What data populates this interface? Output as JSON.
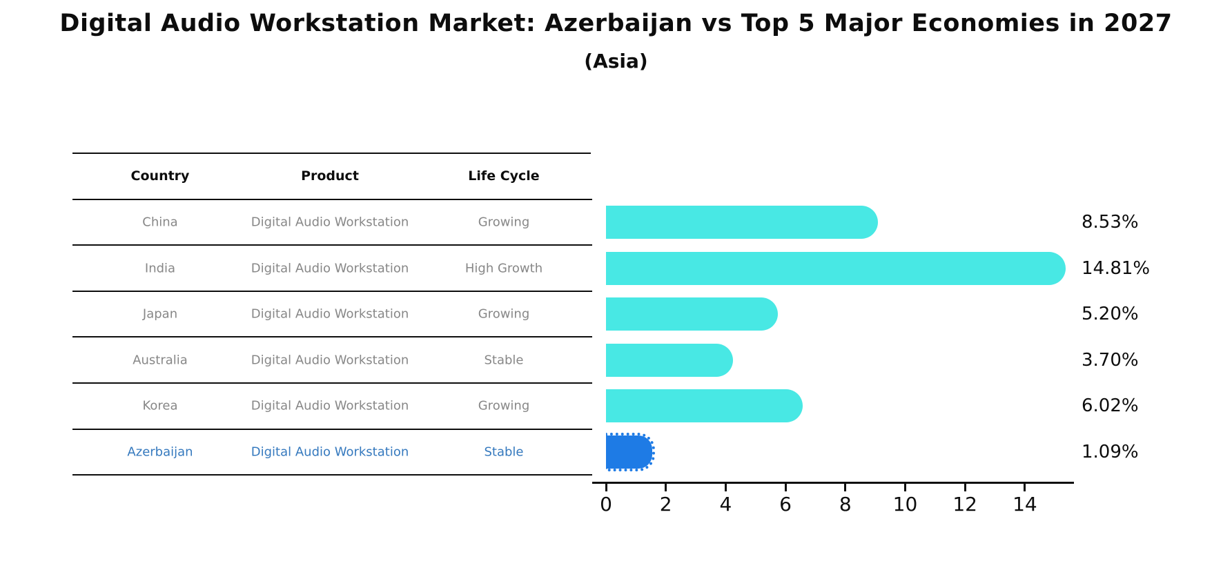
{
  "title": "Digital Audio Workstation Market: Azerbaijan vs Top 5 Major Economies in 2027",
  "subtitle": "(Asia)",
  "table": {
    "headers": [
      "Country",
      "Product",
      "Life Cycle"
    ],
    "rows": [
      {
        "country": "China",
        "product": "Digital Audio Workstation",
        "life_cycle": "Growing",
        "highlighted": false
      },
      {
        "country": "India",
        "product": "Digital Audio Workstation",
        "life_cycle": "High Growth",
        "highlighted": false
      },
      {
        "country": "Japan",
        "product": "Digital Audio Workstation",
        "life_cycle": "Growing",
        "highlighted": false
      },
      {
        "country": "Australia",
        "product": "Digital Audio Workstation",
        "life_cycle": "Stable",
        "highlighted": false
      },
      {
        "country": "Korea",
        "product": "Digital Audio Workstation",
        "life_cycle": "Growing",
        "highlighted": false
      },
      {
        "country": "Azerbaijan",
        "product": "Digital Audio Workstation",
        "life_cycle": "Stable",
        "highlighted": true
      }
    ]
  },
  "chart_data": {
    "type": "bar",
    "orientation": "horizontal",
    "title": "Digital Audio Workstation Market: Azerbaijan vs Top 5 Major Economies in 2027 (Asia)",
    "categories": [
      "China",
      "India",
      "Japan",
      "Australia",
      "Korea",
      "Azerbaijan"
    ],
    "values": [
      8.53,
      14.81,
      5.2,
      3.7,
      6.02,
      1.09
    ],
    "value_labels": [
      "8.53%",
      "14.81%",
      "5.20%",
      "3.70%",
      "6.02%",
      "1.09%"
    ],
    "xlabel": "",
    "ylabel": "",
    "xlim": [
      0,
      15.6
    ],
    "xticks": [
      0,
      2,
      4,
      6,
      8,
      10,
      12,
      14
    ],
    "grid": false,
    "legend": "none",
    "bar_color": "#48e8e4",
    "highlight_color": "#1e7be5",
    "highlight_index": 5,
    "highlight_style": "dotted-outline"
  },
  "colors": {
    "bar_cyan": "#48e8e4",
    "bar_blue": "#1e7be5",
    "row_text_gray": "#878787",
    "highlight_text_blue": "#3579be",
    "axis_black": "#0d0d0d",
    "background": "#ffffff"
  }
}
